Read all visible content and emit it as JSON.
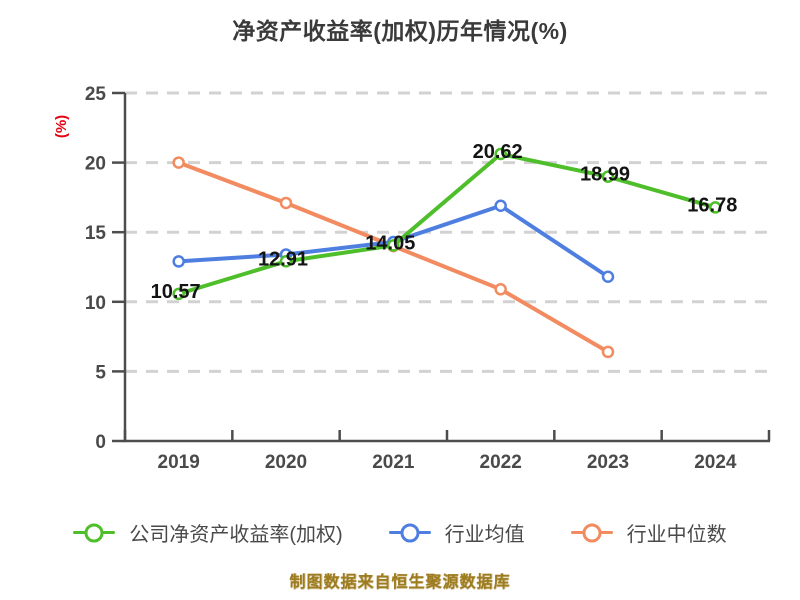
{
  "title": "净资产收益率(加权)历年情况(%)",
  "y_axis_unit": "(%)",
  "footer": "制图数据来自恒生聚源数据库",
  "colors": {
    "company_line": "#4fbe2b",
    "industry_avg_line": "#4d7ee0",
    "industry_median_line": "#f28b60",
    "grid": "#d2d2d2",
    "axis": "#4d4d4d",
    "tick_text": "#4a4a4a",
    "data_label_text": "#141414",
    "title_text": "#3a3a3a",
    "y_unit_text": "#e60012",
    "footer_text": "#9d7c1f"
  },
  "chart_data": {
    "type": "line",
    "title": "净资产收益率(加权)历年情况(%)",
    "xlabel": "",
    "ylabel": "(%)",
    "categories": [
      "2019",
      "2020",
      "2021",
      "2022",
      "2023",
      "2024"
    ],
    "ylim": [
      0,
      25
    ],
    "yticks": [
      0,
      5,
      10,
      15,
      20,
      25
    ],
    "grid": "horizontal-dashed",
    "legend_position": "bottom",
    "series": [
      {
        "name": "公司净资产收益率(加权)",
        "color": "#4fbe2b",
        "values": [
          10.57,
          12.91,
          14.05,
          20.62,
          18.99,
          16.78
        ],
        "data_labels": true,
        "label_texts": [
          "10.57",
          "12.91",
          "14.05",
          "20.62",
          "18.99",
          "16.78"
        ]
      },
      {
        "name": "行业均值",
        "color": "#4d7ee0",
        "values": [
          12.9,
          13.4,
          14.3,
          16.9,
          11.8,
          null
        ],
        "data_labels": false
      },
      {
        "name": "行业中位数",
        "color": "#f28b60",
        "values": [
          20.0,
          17.1,
          14.0,
          10.9,
          6.4,
          null
        ],
        "data_labels": false
      }
    ]
  },
  "legend": {
    "items": [
      {
        "label": "公司净资产收益率(加权)",
        "color": "#4fbe2b"
      },
      {
        "label": "行业均值",
        "color": "#4d7ee0"
      },
      {
        "label": "行业中位数",
        "color": "#f28b60"
      }
    ]
  }
}
